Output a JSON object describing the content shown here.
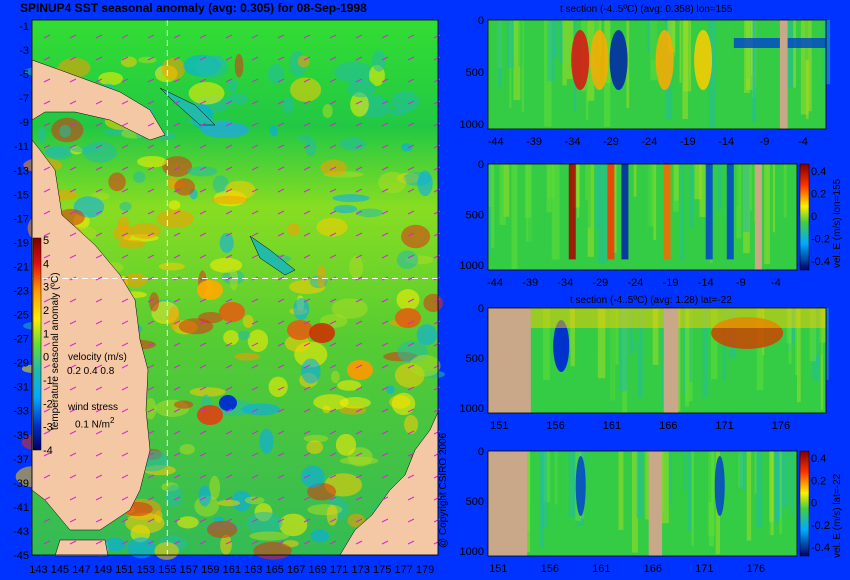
{
  "chart_data": [
    {
      "type": "heatmap",
      "title": "SPINUP4 SST seasonal anomaly (avg: 0.305) for 08-Sep-1998",
      "x_ticks": [
        "143",
        "145",
        "147",
        "149",
        "151",
        "153",
        "155",
        "157",
        "159",
        "161",
        "163",
        "165",
        "167",
        "169",
        "171",
        "173",
        "175",
        "177",
        "179"
      ],
      "y_ticks": [
        "-1",
        "-3",
        "-5",
        "-7",
        "-9",
        "-11",
        "-13",
        "-15",
        "-17",
        "-19",
        "-21",
        "-23",
        "-25",
        "-27",
        "-29",
        "-31",
        "-33",
        "-35",
        "-37",
        "-39",
        "-41",
        "-43",
        "-45"
      ],
      "colorbar": {
        "label": "temperature seasonal anomaly (ºC)",
        "ticks": [
          "5",
          "4",
          "3",
          "2",
          "1",
          "0",
          "-1",
          "-2",
          "-3",
          "-4"
        ],
        "range": [
          -4,
          5
        ]
      },
      "velocity_legend": {
        "label": "velocity (m/s)",
        "values": "0.2 0.4 0.8"
      },
      "wind_legend": {
        "label": "wind stress",
        "value": "0.1 N/m",
        "exp": "2"
      },
      "crosshair": {
        "lon": 155,
        "lat": -22
      }
    },
    {
      "type": "heatmap",
      "title": "t section (-4..5ºC) (avg: 0.358) lon=155",
      "x_ticks": [
        "-44",
        "-39",
        "-34",
        "-29",
        "-24",
        "-19",
        "-14",
        "-9",
        "-4"
      ],
      "y_ticks": [
        "0",
        "500",
        "1000"
      ]
    },
    {
      "type": "heatmap",
      "title": "",
      "side_label": "vel. E (m/s) lon=155",
      "x_ticks": [
        "-44",
        "-39",
        "-34",
        "-29",
        "-24",
        "-19",
        "-14",
        "-9",
        "-4"
      ],
      "y_ticks": [
        "0",
        "500",
        "1000"
      ],
      "colorbar_ticks": [
        "0.4",
        "0.2",
        "0",
        "-0.2",
        "-0.4"
      ]
    },
    {
      "type": "heatmap",
      "title": "t section (-4..5ºC) (avg: 1.28) lat=-22",
      "x_ticks": [
        "151",
        "156",
        "161",
        "166",
        "171",
        "176"
      ],
      "y_ticks": [
        "0",
        "500",
        "1000"
      ]
    },
    {
      "type": "heatmap",
      "title": "",
      "side_label": "vel. E (m/s) lat=-22",
      "x_ticks": [
        "151",
        "156",
        "161",
        "166",
        "171",
        "176"
      ],
      "y_ticks": [
        "0",
        "500",
        "1000"
      ],
      "colorbar_ticks": [
        "0.4",
        "0.2",
        "0",
        "-0.2",
        "-0.4"
      ]
    }
  ],
  "copyright": "@ Copyright CSIRO 2006",
  "colors": {
    "background": "#0033ff",
    "land": "#f4c7a5",
    "section_land": "#c8a888",
    "ocean_mid": "#30c030"
  }
}
